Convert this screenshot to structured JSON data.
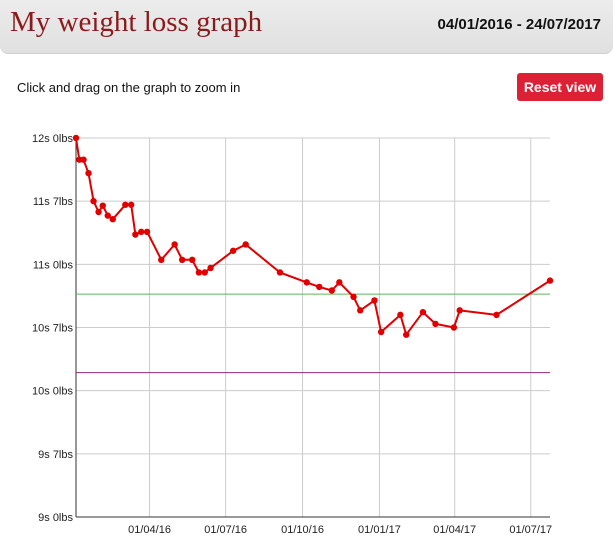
{
  "header": {
    "title": "My weight loss graph",
    "date_range": "04/01/2016 - 24/07/2017"
  },
  "controls": {
    "hint": "Click and drag on the graph to zoom in",
    "reset_label": "Reset view"
  },
  "colors": {
    "title": "#8b1a1a",
    "button": "#dc2036",
    "series": "#e00000",
    "target_line": "#5cb85c",
    "lower_line": "#8e2c7a",
    "grid": "#cccccc"
  },
  "chart_data": {
    "type": "line",
    "title": "",
    "xlabel": "",
    "ylabel": "",
    "x_range": [
      "2016-01-04",
      "2017-07-24"
    ],
    "ylim": [
      126,
      168
    ],
    "y_unit": "lbs",
    "y_ticks": [
      {
        "value": 126,
        "label": "9s 0lbs"
      },
      {
        "value": 133,
        "label": "9s 7lbs"
      },
      {
        "value": 140,
        "label": "10s 0lbs"
      },
      {
        "value": 147,
        "label": "10s 7lbs"
      },
      {
        "value": 154,
        "label": "11s 0lbs"
      },
      {
        "value": 161,
        "label": "11s 7lbs"
      },
      {
        "value": 168,
        "label": "12s 0lbs"
      }
    ],
    "x_ticks": [
      {
        "value": "2016-04-01",
        "label": "01/04/16"
      },
      {
        "value": "2016-07-01",
        "label": "01/07/16"
      },
      {
        "value": "2016-10-01",
        "label": "01/10/16"
      },
      {
        "value": "2017-01-01",
        "label": "01/01/17"
      },
      {
        "value": "2017-04-01",
        "label": "01/04/17"
      },
      {
        "value": "2017-07-01",
        "label": "01/07/17"
      }
    ],
    "grid": true,
    "reference_lines": [
      {
        "value": 150.7,
        "color": "#5cb85c"
      },
      {
        "value": 142.0,
        "color": "#8e2c7a"
      }
    ],
    "series": [
      {
        "color": "#e00000",
        "points": [
          {
            "x": "2016-01-04",
            "y": 168.0
          },
          {
            "x": "2016-01-08",
            "y": 165.6
          },
          {
            "x": "2016-01-13",
            "y": 165.6
          },
          {
            "x": "2016-01-19",
            "y": 164.1
          },
          {
            "x": "2016-01-25",
            "y": 161.0
          },
          {
            "x": "2016-01-31",
            "y": 159.8
          },
          {
            "x": "2016-02-05",
            "y": 160.5
          },
          {
            "x": "2016-02-11",
            "y": 159.4
          },
          {
            "x": "2016-02-17",
            "y": 159.0
          },
          {
            "x": "2016-03-03",
            "y": 160.6
          },
          {
            "x": "2016-03-10",
            "y": 160.6
          },
          {
            "x": "2016-03-15",
            "y": 157.3
          },
          {
            "x": "2016-03-22",
            "y": 157.6
          },
          {
            "x": "2016-03-29",
            "y": 157.6
          },
          {
            "x": "2016-04-15",
            "y": 154.5
          },
          {
            "x": "2016-05-01",
            "y": 156.2
          },
          {
            "x": "2016-05-10",
            "y": 154.5
          },
          {
            "x": "2016-05-22",
            "y": 154.5
          },
          {
            "x": "2016-05-30",
            "y": 153.1
          },
          {
            "x": "2016-06-06",
            "y": 153.1
          },
          {
            "x": "2016-06-13",
            "y": 153.6
          },
          {
            "x": "2016-07-10",
            "y": 155.5
          },
          {
            "x": "2016-07-25",
            "y": 156.2
          },
          {
            "x": "2016-09-04",
            "y": 153.1
          },
          {
            "x": "2016-10-06",
            "y": 152.0
          },
          {
            "x": "2016-10-21",
            "y": 151.5
          },
          {
            "x": "2016-11-05",
            "y": 151.1
          },
          {
            "x": "2016-11-14",
            "y": 152.0
          },
          {
            "x": "2016-12-01",
            "y": 150.4
          },
          {
            "x": "2016-12-09",
            "y": 148.9
          },
          {
            "x": "2016-12-26",
            "y": 150.0
          },
          {
            "x": "2017-01-03",
            "y": 146.5
          },
          {
            "x": "2017-01-26",
            "y": 148.4
          },
          {
            "x": "2017-02-02",
            "y": 146.2
          },
          {
            "x": "2017-02-22",
            "y": 148.7
          },
          {
            "x": "2017-03-09",
            "y": 147.4
          },
          {
            "x": "2017-03-31",
            "y": 147.0
          },
          {
            "x": "2017-04-07",
            "y": 148.9
          },
          {
            "x": "2017-05-21",
            "y": 148.4
          },
          {
            "x": "2017-07-24",
            "y": 152.2
          }
        ]
      }
    ]
  }
}
